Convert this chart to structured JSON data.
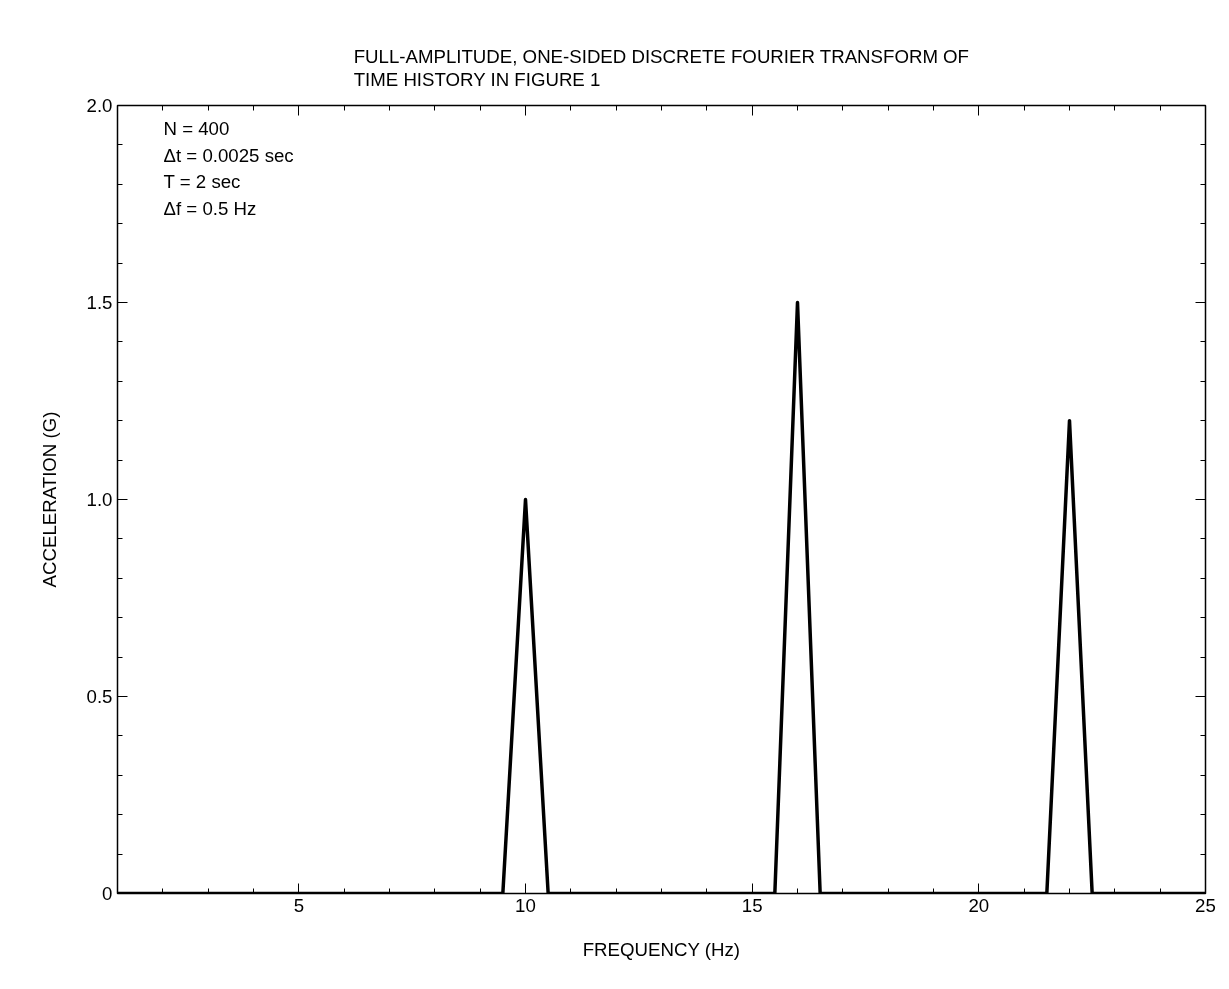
{
  "chart_data": {
    "type": "line",
    "title": "FULL-AMPLITUDE, ONE-SIDED DISCRETE FOURIER TRANSFORM OF\nTIME HISTORY IN FIGURE 1",
    "xlabel": "FREQUENCY (Hz)",
    "ylabel": "ACCELERATION (G)",
    "annotations": [
      "N = 400",
      "Δt = 0.0025  sec",
      "T = 2 sec",
      "Δf = 0.5 Hz"
    ],
    "x": [
      1,
      9.5,
      10,
      10.5,
      15.5,
      16,
      16.5,
      21.5,
      22,
      22.5,
      25
    ],
    "series": [
      {
        "color": "#000000",
        "values": [
          0,
          0,
          1.0,
          0,
          0,
          1.5,
          0,
          0,
          1.2,
          0,
          0
        ]
      }
    ],
    "xlim": [
      1,
      25
    ],
    "xticks": [
      {
        "value": 2,
        "label": null
      },
      {
        "value": 3,
        "label": null
      },
      {
        "value": 4,
        "label": null
      },
      5,
      {
        "value": 6,
        "label": null
      },
      {
        "value": 7,
        "label": null
      },
      {
        "value": 8,
        "label": null
      },
      {
        "value": 9,
        "label": null
      },
      10,
      {
        "value": 11,
        "label": null
      },
      {
        "value": 12,
        "label": null
      },
      {
        "value": 13,
        "label": null
      },
      {
        "value": 14,
        "label": null
      },
      15,
      {
        "value": 16,
        "label": null
      },
      {
        "value": 17,
        "label": null
      },
      {
        "value": 18,
        "label": null
      },
      {
        "value": 19,
        "label": null
      },
      20,
      {
        "value": 21,
        "label": null
      },
      {
        "value": 22,
        "label": null
      },
      {
        "value": 23,
        "label": null
      },
      {
        "value": 24,
        "label": null
      },
      25
    ],
    "ylim": [
      0,
      2
    ],
    "yticks": [
      0,
      {
        "value": 0.1,
        "label": null
      },
      {
        "value": 0.2,
        "label": null
      },
      {
        "value": 0.3,
        "label": null
      },
      {
        "value": 0.4,
        "label": null
      },
      0.5,
      {
        "value": 0.6,
        "label": null
      },
      {
        "value": 0.7,
        "label": null
      },
      {
        "value": 0.8,
        "label": null
      },
      {
        "value": 0.9,
        "label": null
      },
      {
        "value": 1,
        "label": "1.0"
      },
      {
        "value": 1.1,
        "label": null
      },
      {
        "value": 1.2,
        "label": null
      },
      {
        "value": 1.3,
        "label": null
      },
      {
        "value": 1.4,
        "label": null
      },
      1.5,
      {
        "value": 1.6,
        "label": null
      },
      {
        "value": 1.7,
        "label": null
      },
      {
        "value": 1.8,
        "label": null
      },
      {
        "value": 1.9,
        "label": null
      },
      {
        "value": 2,
        "label": "2.0"
      }
    ],
    "grid": false,
    "marker": "none",
    "line_style": "solid"
  }
}
